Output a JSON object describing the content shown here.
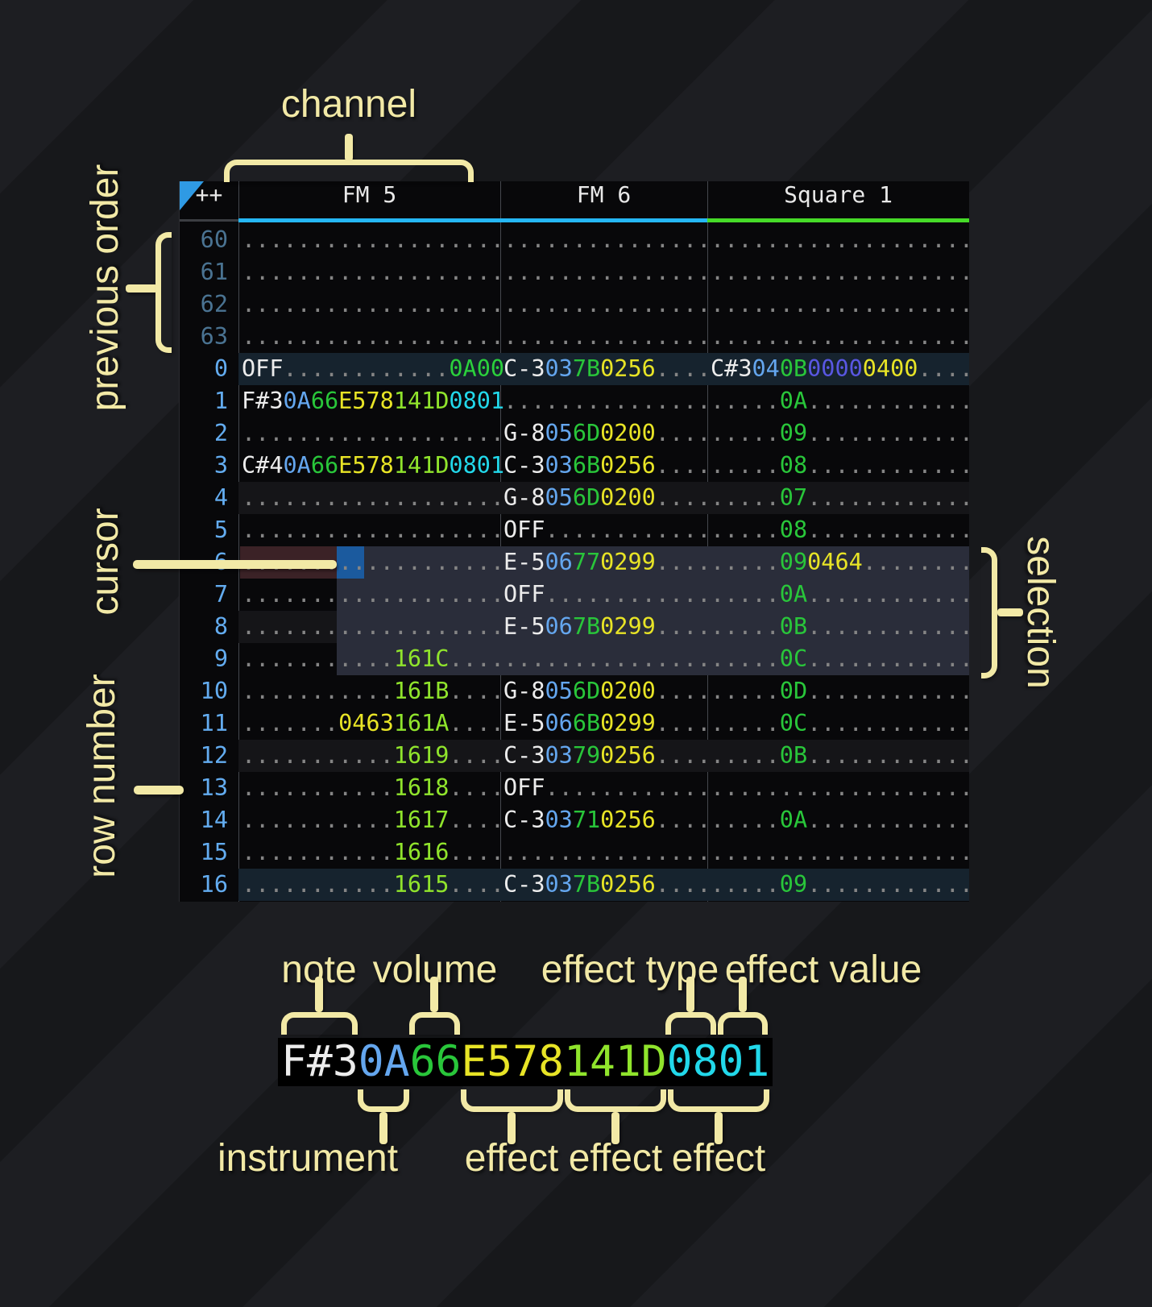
{
  "colors": {
    "label": "#f2e9a6",
    "table_bg": "#08080a",
    "header_text": "#e9e9e9",
    "note": "#ececec",
    "ins": "#64a6ee",
    "vol": "#29c63a",
    "fxy": "#e8e426",
    "fxl": "#90e42c",
    "fxc": "#22d8ea",
    "fxg": "#2bd13c",
    "fxi": "#5957e2",
    "dot": "#858585",
    "rownum_prev": "#4a7392",
    "rownum": "#63acf0",
    "underline_fm": "#25b7f5",
    "underline_sq": "#46db28",
    "hl_strong": "#16232e",
    "hl_weak": "#151518",
    "selection": "#2a2d3a",
    "cursor": "#1b5a9e",
    "note_hl": "#3b2226",
    "triangle": "#2f9ae4"
  },
  "header": {
    "corner": "++",
    "channels": [
      {
        "name": "FM 5",
        "underline": "underline_fm"
      },
      {
        "name": "FM 6",
        "underline": "underline_fm"
      },
      {
        "name": "Square 1",
        "underline": "underline_sq"
      }
    ]
  },
  "annotations": {
    "channel": "channel",
    "previous_order": "previous order",
    "cursor": "cursor",
    "row_number": "row number",
    "selection": "selection",
    "note": "note",
    "volume": "volume",
    "effect_type": "effect type",
    "effect_value": "effect value",
    "instrument": "instrument",
    "effects": [
      "effect",
      "effect",
      "effect"
    ]
  },
  "example": {
    "segments": [
      [
        "F#3",
        "note"
      ],
      [
        "0A",
        "ins"
      ],
      [
        "66",
        "vol"
      ],
      [
        "E578",
        "fxy"
      ],
      [
        "141D",
        "fxl"
      ],
      [
        "0801",
        "fxc"
      ]
    ]
  },
  "pattern": {
    "rows": [
      {
        "n": "60",
        "prev": true,
        "hl": "",
        "cells": [
          [
            [
              "...................",
              "dot"
            ]
          ],
          [
            [
              "...............",
              "dot"
            ]
          ],
          [
            [
              "...................",
              "dot"
            ]
          ]
        ]
      },
      {
        "n": "61",
        "prev": true,
        "hl": "",
        "cells": [
          [
            [
              "...................",
              "dot"
            ]
          ],
          [
            [
              "...............",
              "dot"
            ]
          ],
          [
            [
              "...................",
              "dot"
            ]
          ]
        ]
      },
      {
        "n": "62",
        "prev": true,
        "hl": "",
        "cells": [
          [
            [
              "...................",
              "dot"
            ]
          ],
          [
            [
              "...............",
              "dot"
            ]
          ],
          [
            [
              "...................",
              "dot"
            ]
          ]
        ]
      },
      {
        "n": "63",
        "prev": true,
        "hl": "",
        "cells": [
          [
            [
              "...................",
              "dot"
            ]
          ],
          [
            [
              "...............",
              "dot"
            ]
          ],
          [
            [
              "...................",
              "dot"
            ]
          ]
        ]
      },
      {
        "n": "0",
        "prev": false,
        "hl": "s",
        "cells": [
          [
            [
              "OFF",
              "note"
            ],
            [
              "............",
              "dot"
            ],
            [
              "0A00",
              "fxg"
            ]
          ],
          [
            [
              "C-3",
              "note"
            ],
            [
              "03",
              "ins"
            ],
            [
              "7B",
              "vol"
            ],
            [
              "0256",
              "fxy"
            ],
            [
              "....",
              "dot"
            ]
          ],
          [
            [
              "C#3",
              "note"
            ],
            [
              "04",
              "ins"
            ],
            [
              "0B",
              "vol"
            ],
            [
              "0000",
              "fxi"
            ],
            [
              "0400",
              "fxy"
            ],
            [
              "....",
              "dot"
            ]
          ]
        ]
      },
      {
        "n": "1",
        "prev": false,
        "hl": "",
        "cells": [
          [
            [
              "F#3",
              "note"
            ],
            [
              "0A",
              "ins"
            ],
            [
              "66",
              "vol"
            ],
            [
              "E578",
              "fxy"
            ],
            [
              "141D",
              "fxl"
            ],
            [
              "0801",
              "fxc"
            ]
          ],
          [
            [
              "...............",
              "dot"
            ]
          ],
          [
            [
              ".....",
              "dot"
            ],
            [
              "0A",
              "vol"
            ],
            [
              "............",
              "dot"
            ]
          ]
        ]
      },
      {
        "n": "2",
        "prev": false,
        "hl": "",
        "cells": [
          [
            [
              "...................",
              "dot"
            ]
          ],
          [
            [
              "G-8",
              "note"
            ],
            [
              "05",
              "ins"
            ],
            [
              "6D",
              "vol"
            ],
            [
              "0200",
              "fxy"
            ],
            [
              "....",
              "dot"
            ]
          ],
          [
            [
              ".....",
              "dot"
            ],
            [
              "09",
              "vol"
            ],
            [
              "............",
              "dot"
            ]
          ]
        ]
      },
      {
        "n": "3",
        "prev": false,
        "hl": "",
        "cells": [
          [
            [
              "C#4",
              "note"
            ],
            [
              "0A",
              "ins"
            ],
            [
              "66",
              "vol"
            ],
            [
              "E578",
              "fxy"
            ],
            [
              "141D",
              "fxl"
            ],
            [
              "0801",
              "fxc"
            ]
          ],
          [
            [
              "C-3",
              "note"
            ],
            [
              "03",
              "ins"
            ],
            [
              "6B",
              "vol"
            ],
            [
              "0256",
              "fxy"
            ],
            [
              "....",
              "dot"
            ]
          ],
          [
            [
              ".....",
              "dot"
            ],
            [
              "08",
              "vol"
            ],
            [
              "............",
              "dot"
            ]
          ]
        ]
      },
      {
        "n": "4",
        "prev": false,
        "hl": "w",
        "cells": [
          [
            [
              "...................",
              "dot"
            ]
          ],
          [
            [
              "G-8",
              "note"
            ],
            [
              "05",
              "ins"
            ],
            [
              "6D",
              "vol"
            ],
            [
              "0200",
              "fxy"
            ],
            [
              "....",
              "dot"
            ]
          ],
          [
            [
              ".....",
              "dot"
            ],
            [
              "07",
              "vol"
            ],
            [
              "............",
              "dot"
            ]
          ]
        ]
      },
      {
        "n": "5",
        "prev": false,
        "hl": "",
        "cells": [
          [
            [
              "...................",
              "dot"
            ]
          ],
          [
            [
              "OFF",
              "note"
            ],
            [
              "............",
              "dot"
            ]
          ],
          [
            [
              ".....",
              "dot"
            ],
            [
              "08",
              "vol"
            ],
            [
              "............",
              "dot"
            ]
          ]
        ]
      },
      {
        "n": "6",
        "prev": false,
        "hl": "",
        "cells": [
          [
            [
              "...................",
              "dot"
            ]
          ],
          [
            [
              "E-5",
              "note"
            ],
            [
              "06",
              "ins"
            ],
            [
              "77",
              "vol"
            ],
            [
              "0299",
              "fxy"
            ],
            [
              "....",
              "dot"
            ]
          ],
          [
            [
              ".....",
              "dot"
            ],
            [
              "09",
              "vol"
            ],
            [
              "0464",
              "fxy"
            ],
            [
              "........",
              "dot"
            ]
          ]
        ]
      },
      {
        "n": "7",
        "prev": false,
        "hl": "",
        "cells": [
          [
            [
              "...................",
              "dot"
            ]
          ],
          [
            [
              "OFF",
              "note"
            ],
            [
              "............",
              "dot"
            ]
          ],
          [
            [
              ".....",
              "dot"
            ],
            [
              "0A",
              "vol"
            ],
            [
              "............",
              "dot"
            ]
          ]
        ]
      },
      {
        "n": "8",
        "prev": false,
        "hl": "w",
        "cells": [
          [
            [
              "...................",
              "dot"
            ]
          ],
          [
            [
              "E-5",
              "note"
            ],
            [
              "06",
              "ins"
            ],
            [
              "7B",
              "vol"
            ],
            [
              "0299",
              "fxy"
            ],
            [
              "....",
              "dot"
            ]
          ],
          [
            [
              ".....",
              "dot"
            ],
            [
              "0B",
              "vol"
            ],
            [
              "............",
              "dot"
            ]
          ]
        ]
      },
      {
        "n": "9",
        "prev": false,
        "hl": "",
        "cells": [
          [
            [
              "...........",
              "dot"
            ],
            [
              "161C",
              "fxl"
            ],
            [
              "....",
              "dot"
            ]
          ],
          [
            [
              "...............",
              "dot"
            ]
          ],
          [
            [
              ".....",
              "dot"
            ],
            [
              "0C",
              "vol"
            ],
            [
              "............",
              "dot"
            ]
          ]
        ]
      },
      {
        "n": "10",
        "prev": false,
        "hl": "",
        "cells": [
          [
            [
              "...........",
              "dot"
            ],
            [
              "161B",
              "fxl"
            ],
            [
              "....",
              "dot"
            ]
          ],
          [
            [
              "G-8",
              "note"
            ],
            [
              "05",
              "ins"
            ],
            [
              "6D",
              "vol"
            ],
            [
              "0200",
              "fxy"
            ],
            [
              "....",
              "dot"
            ]
          ],
          [
            [
              ".....",
              "dot"
            ],
            [
              "0D",
              "vol"
            ],
            [
              "............",
              "dot"
            ]
          ]
        ]
      },
      {
        "n": "11",
        "prev": false,
        "hl": "",
        "cells": [
          [
            [
              ".......",
              "dot"
            ],
            [
              "0463",
              "fxy"
            ],
            [
              "161A",
              "fxl"
            ],
            [
              "....",
              "dot"
            ]
          ],
          [
            [
              "E-5",
              "note"
            ],
            [
              "06",
              "ins"
            ],
            [
              "6B",
              "vol"
            ],
            [
              "0299",
              "fxy"
            ],
            [
              "....",
              "dot"
            ]
          ],
          [
            [
              ".....",
              "dot"
            ],
            [
              "0C",
              "vol"
            ],
            [
              "............",
              "dot"
            ]
          ]
        ]
      },
      {
        "n": "12",
        "prev": false,
        "hl": "w",
        "cells": [
          [
            [
              "...........",
              "dot"
            ],
            [
              "1619",
              "fxl"
            ],
            [
              "....",
              "dot"
            ]
          ],
          [
            [
              "C-3",
              "note"
            ],
            [
              "03",
              "ins"
            ],
            [
              "79",
              "vol"
            ],
            [
              "0256",
              "fxy"
            ],
            [
              "....",
              "dot"
            ]
          ],
          [
            [
              ".....",
              "dot"
            ],
            [
              "0B",
              "vol"
            ],
            [
              "............",
              "dot"
            ]
          ]
        ]
      },
      {
        "n": "13",
        "prev": false,
        "hl": "",
        "cells": [
          [
            [
              "...........",
              "dot"
            ],
            [
              "1618",
              "fxl"
            ],
            [
              "....",
              "dot"
            ]
          ],
          [
            [
              "OFF",
              "note"
            ],
            [
              "............",
              "dot"
            ]
          ],
          [
            [
              "...................",
              "dot"
            ]
          ]
        ]
      },
      {
        "n": "14",
        "prev": false,
        "hl": "",
        "cells": [
          [
            [
              "...........",
              "dot"
            ],
            [
              "1617",
              "fxl"
            ],
            [
              "....",
              "dot"
            ]
          ],
          [
            [
              "C-3",
              "note"
            ],
            [
              "03",
              "ins"
            ],
            [
              "71",
              "vol"
            ],
            [
              "0256",
              "fxy"
            ],
            [
              "....",
              "dot"
            ]
          ],
          [
            [
              ".....",
              "dot"
            ],
            [
              "0A",
              "vol"
            ],
            [
              "............",
              "dot"
            ]
          ]
        ]
      },
      {
        "n": "15",
        "prev": false,
        "hl": "",
        "cells": [
          [
            [
              "...........",
              "dot"
            ],
            [
              "1616",
              "fxl"
            ],
            [
              "....",
              "dot"
            ]
          ],
          [
            [
              "...............",
              "dot"
            ]
          ],
          [
            [
              "...................",
              "dot"
            ]
          ]
        ]
      },
      {
        "n": "16",
        "prev": false,
        "hl": "s",
        "cells": [
          [
            [
              "...........",
              "dot"
            ],
            [
              "1615",
              "fxl"
            ],
            [
              "....",
              "dot"
            ]
          ],
          [
            [
              "C-3",
              "note"
            ],
            [
              "03",
              "ins"
            ],
            [
              "7B",
              "vol"
            ],
            [
              "0256",
              "fxy"
            ],
            [
              "....",
              "dot"
            ]
          ],
          [
            [
              ".....",
              "dot"
            ],
            [
              "09",
              "vol"
            ],
            [
              "............",
              "dot"
            ]
          ]
        ]
      }
    ]
  }
}
